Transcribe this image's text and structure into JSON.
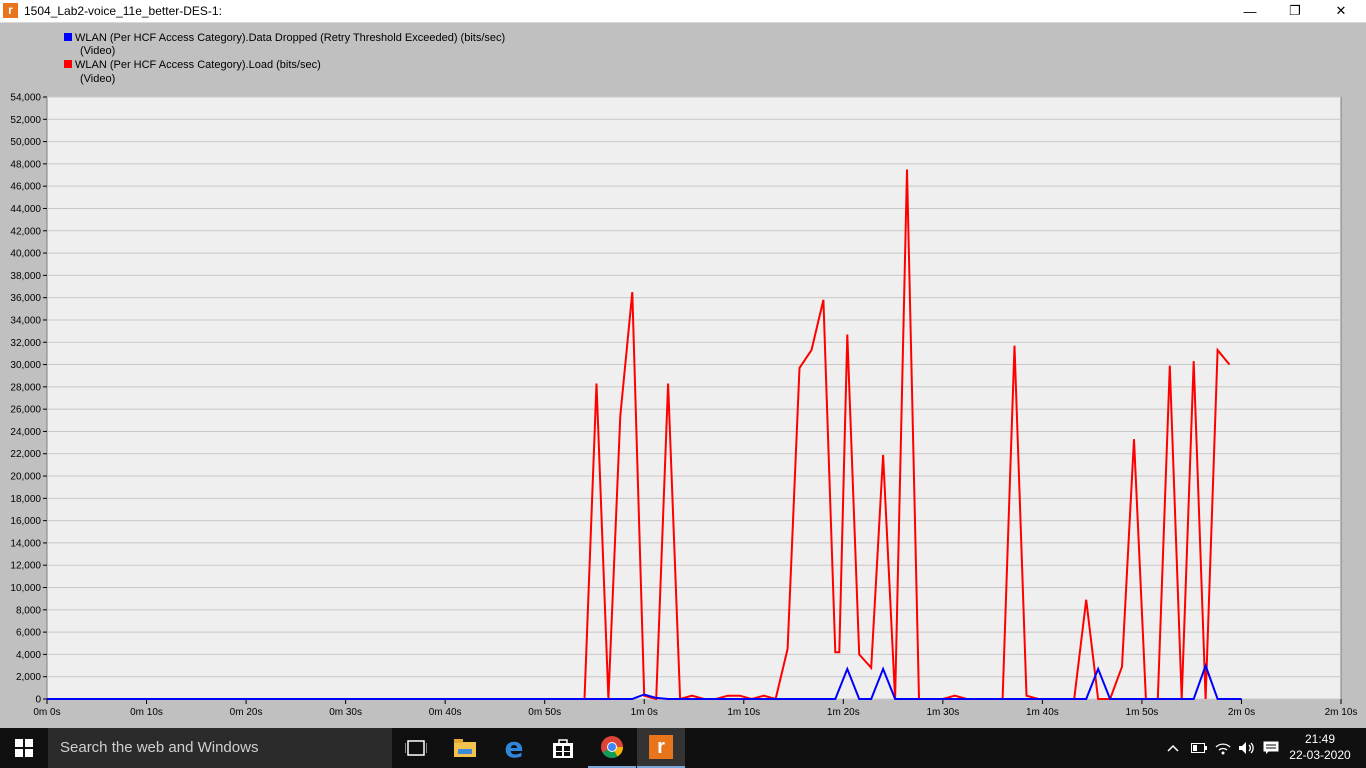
{
  "window": {
    "title": "1504_Lab2-voice_11e_better-DES-1:",
    "app_icon_letter": "r",
    "minimize_label": "—",
    "restore_label": "❐",
    "close_label": "✕"
  },
  "legend": [
    {
      "label": "WLAN (Per HCF Access Category).Data Dropped (Retry Threshold Exceeded) (bits/sec)",
      "sub": "(Video)",
      "color": "#0000ff"
    },
    {
      "label": "WLAN (Per HCF Access Category).Load (bits/sec)",
      "sub": "(Video)",
      "color": "#ff0000"
    }
  ],
  "chart_data": {
    "type": "line",
    "xlabel": "",
    "ylabel": "",
    "xlim": [
      0,
      130
    ],
    "ylim": [
      0,
      54000
    ],
    "y_ticks": [
      0,
      2000,
      4000,
      6000,
      8000,
      10000,
      12000,
      14000,
      16000,
      18000,
      20000,
      22000,
      24000,
      26000,
      28000,
      30000,
      32000,
      34000,
      36000,
      38000,
      40000,
      42000,
      44000,
      46000,
      48000,
      50000,
      52000,
      54000
    ],
    "y_tick_labels": [
      "0",
      "2,000",
      "4,000",
      "6,000",
      "8,000",
      "10,000",
      "12,000",
      "14,000",
      "16,000",
      "18,000",
      "20,000",
      "22,000",
      "24,000",
      "26,000",
      "28,000",
      "30,000",
      "32,000",
      "34,000",
      "36,000",
      "38,000",
      "40,000",
      "42,000",
      "44,000",
      "46,000",
      "48,000",
      "50,000",
      "52,000",
      "54,000"
    ],
    "x_ticks": [
      0,
      10,
      20,
      30,
      40,
      50,
      60,
      70,
      80,
      90,
      100,
      110,
      120,
      130
    ],
    "x_tick_labels": [
      "0m 0s",
      "0m 10s",
      "0m 20s",
      "0m 30s",
      "0m 40s",
      "0m 50s",
      "1m 0s",
      "1m 10s",
      "1m 20s",
      "1m 30s",
      "1m 40s",
      "1m 50s",
      "2m 0s",
      "2m 10s"
    ],
    "grid": true,
    "legend_position": "top-left",
    "background": "#efefef",
    "series": [
      {
        "name": "WLAN (Per HCF Access Category).Data Dropped (Retry Threshold Exceeded) (bits/sec) (Video)",
        "color": "#0000ff",
        "x": [
          0,
          58.8,
          60,
          61.2,
          62.4,
          79.2,
          80.4,
          81.6,
          82.8,
          84,
          85.2,
          104.4,
          105.6,
          106.8,
          115.2,
          116.4,
          117.6,
          120
        ],
        "y": [
          0,
          0,
          400,
          100,
          0,
          0,
          2700,
          0,
          0,
          2700,
          0,
          0,
          2700,
          0,
          0,
          3000,
          0,
          0
        ]
      },
      {
        "name": "WLAN (Per HCF Access Category).Load (bits/sec) (Video)",
        "color": "#ff0000",
        "x": [
          0,
          54,
          55.2,
          56.4,
          57.6,
          58.8,
          60,
          61.2,
          62.4,
          63.6,
          64.8,
          66,
          67.2,
          68.4,
          69.6,
          70.8,
          72,
          73.2,
          74.4,
          75.6,
          76.8,
          78,
          79.2,
          79.6,
          80.4,
          81.6,
          82.8,
          84,
          85.2,
          86.4,
          87.6,
          88.8,
          90,
          91.2,
          92.4,
          93.6,
          94.8,
          96,
          97.2,
          98.4,
          99.6,
          100.8,
          102,
          103.2,
          104.4,
          105.6,
          106.8,
          108,
          109.2,
          110.4,
          111.6,
          112.8,
          114,
          115.2,
          116.4,
          117.6,
          118.8
        ],
        "y": [
          0,
          0,
          28300,
          0,
          25400,
          36500,
          300,
          0,
          28300,
          0,
          300,
          0,
          0,
          300,
          300,
          0,
          300,
          0,
          4500,
          29700,
          31300,
          35800,
          4200,
          4200,
          32700,
          4000,
          2800,
          21900,
          0,
          47500,
          0,
          0,
          0,
          300,
          0,
          0,
          0,
          0,
          31700,
          300,
          0,
          0,
          0,
          0,
          8900,
          0,
          0,
          2900,
          23300,
          0,
          0,
          29900,
          0,
          30300,
          0,
          31300,
          30000
        ]
      }
    ]
  },
  "taskbar": {
    "search_placeholder": "Search the web and Windows",
    "time": "21:49",
    "date": "22-03-2020",
    "apps": [
      "task-view",
      "file-explorer",
      "edge",
      "store",
      "chrome",
      "riverbed-modeler"
    ]
  }
}
